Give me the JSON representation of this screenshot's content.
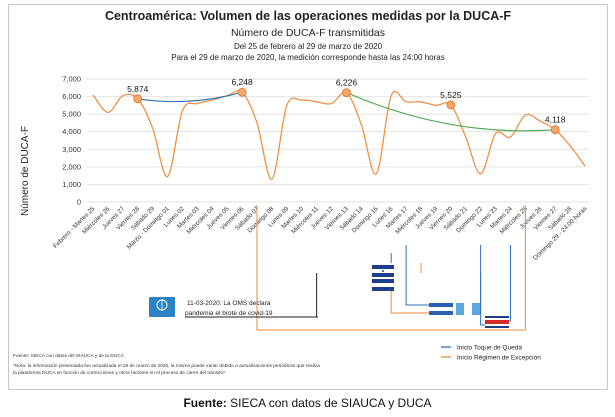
{
  "chart_data": {
    "type": "line",
    "title": "Centroamérica: Volumen de las operaciones medidas por la DUCA-F",
    "subtitle": "Número de DUCA-F transmitidas",
    "subtitle2": "Del 25 de febrero al 29 de marzo de 2020",
    "subtitle3": "Para el 29 de marzo de 2020, la medición corresponde hasta las 24:00 horas",
    "ylabel": "Número de DUCA-F",
    "ylim": [
      0,
      7000
    ],
    "yticks": [
      "0",
      "1,000",
      "2,000",
      "3,000",
      "4,000",
      "5,000",
      "6,000",
      "7,000"
    ],
    "categories": [
      "Febrero - Martes 25",
      "Miércoles 26",
      "Jueves 27",
      "Viernes 28",
      "Sábado 29",
      "Marzo - Domingo 01",
      "Lunes 02",
      "Martes 03",
      "Miércoles 04",
      "Jueves 05",
      "Viernes 06",
      "Sábado 07",
      "Domingo 08",
      "Lunes 09",
      "Martes 10",
      "Miércoles 11",
      "Jueves 12",
      "Viernes 13",
      "Sábado 14",
      "Domingo 15",
      "Lunes 16",
      "Martes 17",
      "Miércoles 18",
      "Jueves 19",
      "Viernes 20",
      "Sábado 21",
      "Domingo 22",
      "Lunes 23",
      "Martes 24",
      "Miércoles 25",
      "Jueves 26",
      "Viernes 27",
      "Sábado 28",
      "Domingo 29 - 24:00 horas"
    ],
    "series": [
      {
        "values": [
          6100,
          5100,
          6050,
          5874,
          4200,
          1450,
          5200,
          5600,
          5800,
          6050,
          6248,
          4500,
          1300,
          5500,
          5800,
          5700,
          5600,
          6226,
          4400,
          1600,
          6050,
          5700,
          5700,
          5500,
          5525,
          3700,
          1600,
          3900,
          3700,
          4950,
          4600,
          4118,
          3200,
          2050
        ],
        "color": "#f08a3a"
      }
    ],
    "trend_segments": [
      {
        "from_index": 3,
        "to_index": 10,
        "color": "#2d6fb5"
      },
      {
        "from_index": 17,
        "to_index": 31,
        "color": "#4aa64a"
      }
    ],
    "highlighted_points": [
      {
        "index": 3,
        "label": "5,874"
      },
      {
        "index": 10,
        "label": "6,248"
      },
      {
        "index": 17,
        "label": "6,226"
      },
      {
        "index": 24,
        "label": "5,525"
      },
      {
        "index": 31,
        "label": "4,118"
      }
    ],
    "grid": true,
    "legend": [
      {
        "label": "Inicio Toque de Queda",
        "color": "#2d6fb5"
      },
      {
        "label": "Inicio Régimen de Excepción",
        "color": "#f08a3a"
      }
    ],
    "annotation": {
      "line1": "11-03-2020: La OMS declara",
      "line2": "pandemia el brote de covid-19"
    },
    "notes": [
      "Fuente: SIECA con datos del SIAUCA y de la DUCA",
      "*Nota: la información presentada fue actualizada el 29 de marzo de 2020, la misma puede variar debido a actualizaciones periódicas que realiza",
      "la plataforma DUCA en función de correcciones y otros factores en el proceso de cierre del tránsito*."
    ]
  },
  "footer": {
    "bold": "Fuente:",
    "text": " SIECA con datos de SIAUCA y DUCA"
  },
  "colors": {
    "series": "#f08a3a",
    "trend_blue": "#2d6fb5",
    "trend_green": "#4aa64a",
    "grid": "#d9d9d9"
  }
}
